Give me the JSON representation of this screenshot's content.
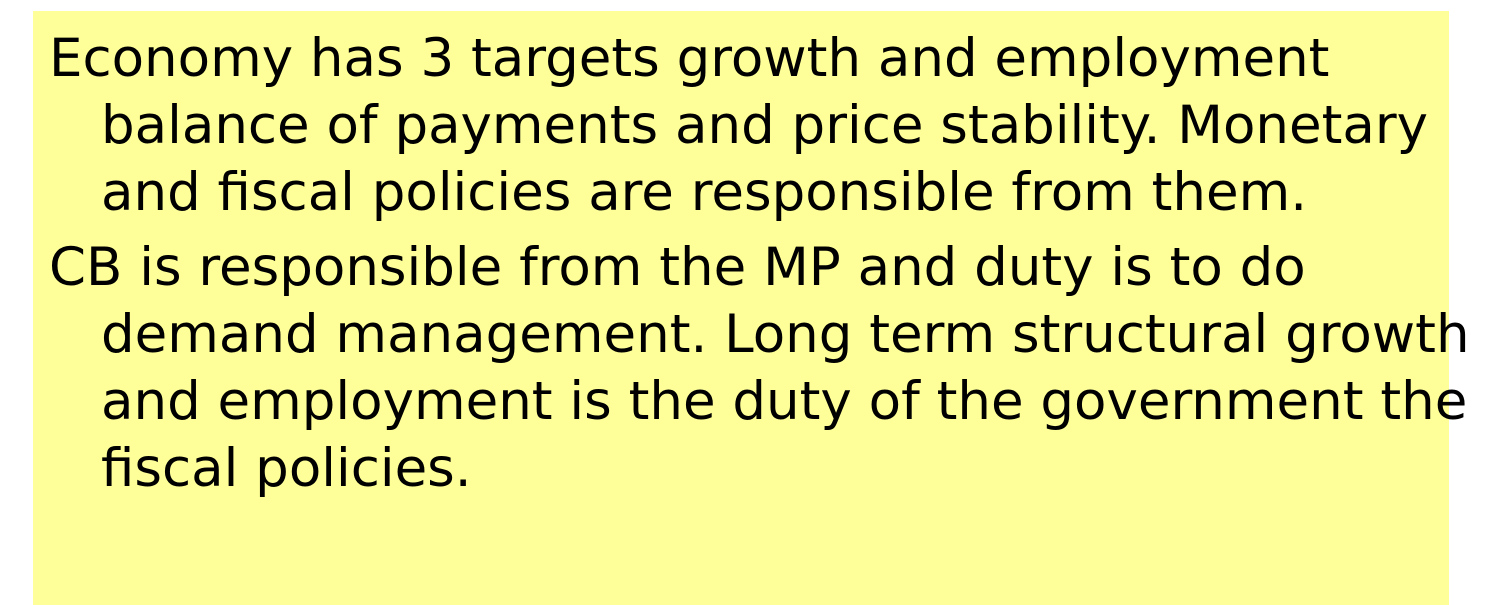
{
  "slide": {
    "paragraphs": [
      "Economy has 3 targets growth and employment balance of payments and price stability. Monetary and fiscal policies are responsible from them.",
      "CB is responsible from the MP and duty is to do demand management. Long term structural growth and employment is the duty of the government the fiscal policies."
    ],
    "background_color": "#ffff99",
    "text_color": "#000000"
  }
}
